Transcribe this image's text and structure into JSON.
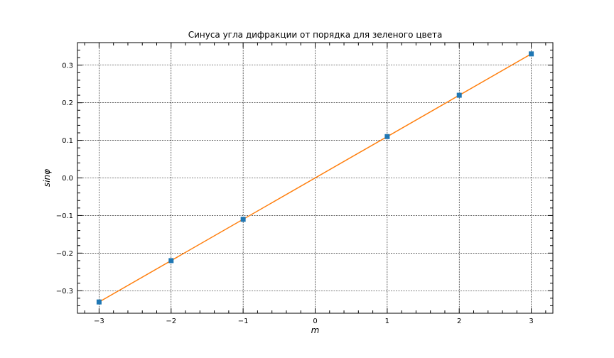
{
  "chart_data": {
    "type": "line",
    "title": "Синуса угла дифракции от порядка для зеленого цвета",
    "xlabel": "m",
    "ylabel": "sinφ",
    "xlim": [
      -3.3,
      3.3
    ],
    "ylim": [
      -0.36,
      0.36
    ],
    "xticks": [
      -3,
      -2,
      -1,
      0,
      1,
      2,
      3
    ],
    "xtick_labels": [
      "−3",
      "−2",
      "−1",
      "0",
      "1",
      "2",
      "3"
    ],
    "yticks": [
      -0.3,
      -0.2,
      -0.1,
      0.0,
      0.1,
      0.2,
      0.3
    ],
    "ytick_labels": [
      "−0.3",
      "−0.2",
      "−0.1",
      "0.0",
      "0.1",
      "0.2",
      "0.3"
    ],
    "grid": true,
    "series": [
      {
        "style": "markers",
        "color": "#1f77b4",
        "marker": "square",
        "x": [
          -3,
          -2,
          -1,
          1,
          2,
          3
        ],
        "y": [
          -0.33,
          -0.22,
          -0.11,
          0.11,
          0.22,
          0.33
        ]
      },
      {
        "style": "line",
        "color": "#ff7f0e",
        "x": [
          -3,
          3
        ],
        "y": [
          -0.33,
          0.33
        ]
      }
    ]
  }
}
